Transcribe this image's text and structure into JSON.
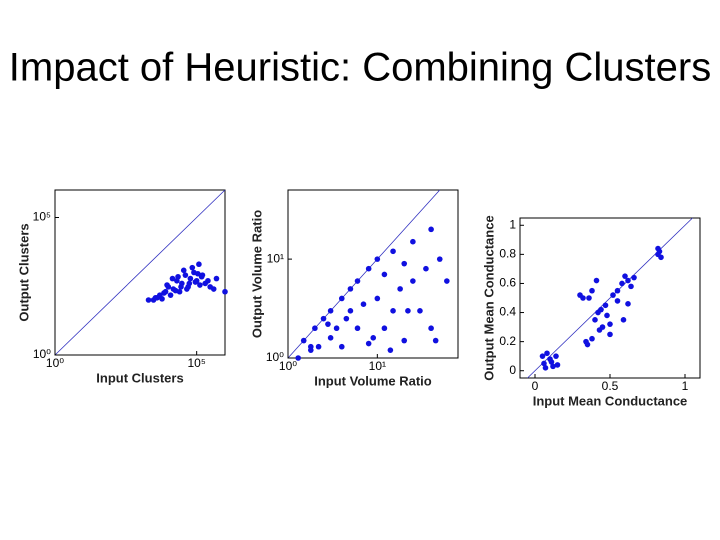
{
  "slide": {
    "title": "Impact of Heuristic: Combining Clusters"
  },
  "chart_data": [
    {
      "type": "scatter",
      "xlabel": "Input Clusters",
      "ylabel": "Output Clusters",
      "log_x": true,
      "log_y": true,
      "color": "#1010e0",
      "xlim": [
        1,
        1000000
      ],
      "ylim": [
        1,
        1000000
      ],
      "xticks": [
        {
          "value": 1,
          "label": "10⁰"
        },
        {
          "value": 100000,
          "label": "10⁵"
        }
      ],
      "yticks": [
        {
          "value": 1,
          "label": "10⁰"
        },
        {
          "value": 100000,
          "label": "10⁵"
        }
      ],
      "x": [
        2000,
        3000,
        4000,
        5000,
        6000,
        8000,
        10000,
        12000,
        15000,
        20000,
        25000,
        30000,
        40000,
        50000,
        60000,
        80000,
        100000,
        120000,
        150000,
        200000,
        300000,
        500000,
        1000000,
        7000,
        9000,
        18000,
        22000,
        35000,
        45000,
        70000,
        90000,
        110000,
        130000,
        160000,
        250000,
        400000,
        3500,
        14000,
        28000,
        55000
      ],
      "values": [
        100,
        100,
        120,
        150,
        110,
        200,
        300,
        150,
        250,
        500,
        200,
        400,
        800,
        300,
        600,
        1000,
        500,
        2000,
        700,
        400,
        300,
        600,
        200,
        180,
        350,
        220,
        700,
        1200,
        250,
        1500,
        450,
        900,
        350,
        800,
        500,
        250,
        120,
        600,
        300,
        400
      ]
    },
    {
      "type": "scatter",
      "xlabel": "Input Volume Ratio",
      "ylabel": "Output Volume Ratio",
      "log_x": true,
      "log_y": true,
      "color": "#1010e0",
      "xlim": [
        1,
        80
      ],
      "ylim": [
        1,
        50
      ],
      "xticks": [
        {
          "value": 1,
          "label": "10⁰"
        },
        {
          "value": 10,
          "label": "10¹"
        }
      ],
      "yticks": [
        {
          "value": 1,
          "label": "10⁰"
        },
        {
          "value": 10,
          "label": "10¹"
        }
      ],
      "x": [
        1.3,
        1.5,
        1.8,
        2,
        2.2,
        2.5,
        3,
        3,
        3.5,
        4,
        4,
        5,
        5,
        6,
        6,
        7,
        8,
        8,
        10,
        10,
        12,
        12,
        15,
        15,
        18,
        20,
        20,
        25,
        25,
        30,
        35,
        40,
        40,
        50,
        60,
        1.8,
        2.8,
        4.5,
        9,
        14,
        22,
        45
      ],
      "values": [
        1,
        1.5,
        1.2,
        2,
        1.3,
        2.5,
        1.6,
        3,
        2,
        4,
        1.3,
        3,
        5,
        2,
        6,
        3.5,
        1.4,
        8,
        4,
        10,
        2,
        7,
        3,
        12,
        5,
        9,
        1.5,
        6,
        15,
        3,
        8,
        20,
        2,
        10,
        6,
        1.3,
        2.2,
        2.5,
        1.6,
        1.2,
        3,
        1.5
      ]
    },
    {
      "type": "scatter",
      "xlabel": "Input Mean Conductance",
      "ylabel": "Output Mean Conductance",
      "log_x": false,
      "log_y": false,
      "color": "#1010e0",
      "xlim": [
        -0.1,
        1.1
      ],
      "ylim": [
        -0.05,
        1.05
      ],
      "xticks": [
        0,
        0.5,
        1
      ],
      "yticks": [
        0,
        0.2,
        0.4,
        0.6,
        0.8,
        1
      ],
      "x": [
        0.05,
        0.06,
        0.08,
        0.1,
        0.12,
        0.14,
        0.15,
        0.07,
        0.11,
        0.3,
        0.32,
        0.35,
        0.38,
        0.4,
        0.42,
        0.45,
        0.47,
        0.5,
        0.36,
        0.41,
        0.43,
        0.48,
        0.52,
        0.55,
        0.58,
        0.6,
        0.62,
        0.64,
        0.66,
        0.59,
        0.62,
        0.82,
        0.83,
        0.84,
        0.82,
        0.34,
        0.44,
        0.38,
        0.5,
        0.55
      ],
      "values": [
        0.1,
        0.05,
        0.12,
        0.08,
        0.03,
        0.1,
        0.04,
        0.02,
        0.06,
        0.52,
        0.5,
        0.18,
        0.22,
        0.35,
        0.4,
        0.3,
        0.45,
        0.32,
        0.5,
        0.62,
        0.28,
        0.38,
        0.52,
        0.55,
        0.6,
        0.65,
        0.62,
        0.58,
        0.64,
        0.35,
        0.46,
        0.8,
        0.82,
        0.78,
        0.84,
        0.2,
        0.42,
        0.55,
        0.25,
        0.48
      ]
    }
  ]
}
